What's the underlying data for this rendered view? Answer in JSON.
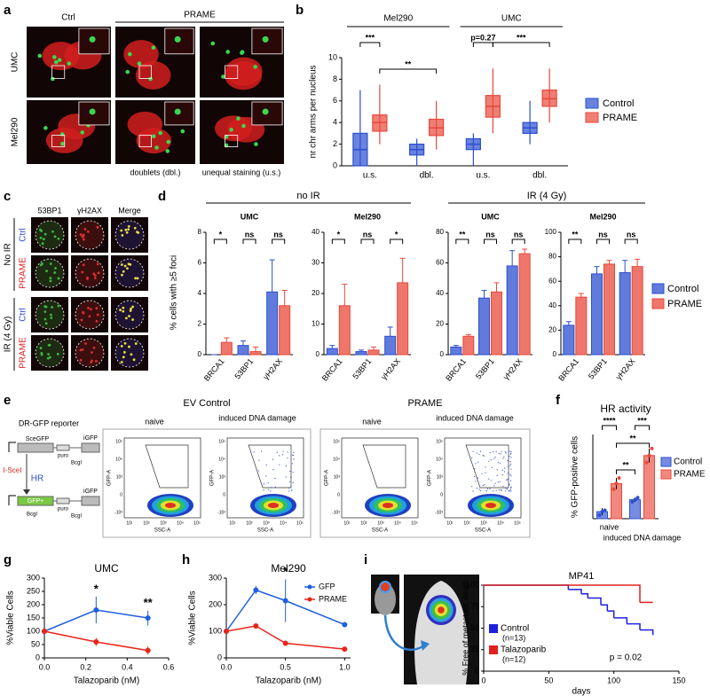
{
  "letters": [
    "a",
    "b",
    "c",
    "d",
    "e",
    "f",
    "g",
    "h",
    "i"
  ],
  "panel_a": {
    "columns": [
      "Ctrl",
      "PRAME"
    ],
    "rows": [
      "UMC",
      "Mel290"
    ],
    "captions": [
      "doublets (dbl.)",
      "unequal staining (u.s.)"
    ]
  },
  "panel_c": {
    "columns": [
      "53BP1",
      "γH2AX",
      "Merge"
    ],
    "groups": [
      "No IR",
      "IR (4 Gy)"
    ],
    "rows": [
      "Ctrl",
      "PRAME",
      "Ctrl",
      "PRAME"
    ]
  },
  "panel_e": {
    "reporter": {
      "title": "DR-GFP reporter",
      "top": [
        "SceGFP",
        "puro",
        "BcgI",
        "iGFP"
      ],
      "enzyme": "I-SceI",
      "repair": "HR",
      "bottom": [
        "GFP+",
        "BcgI",
        "puro",
        "BcgI",
        "iGFP"
      ]
    },
    "groups": [
      "EV Control",
      "PRAME"
    ],
    "conditions": [
      "naive",
      "induced DNA damage"
    ],
    "x_axis": "SSC-A",
    "y_axis": "GFP-A",
    "x_ticks": [
      "10¹",
      "10²",
      "10³",
      "10⁴",
      "10⁵"
    ],
    "y_ticks": [
      "-10³",
      "0",
      "10³",
      "10⁴",
      "10⁵"
    ]
  },
  "chart_data": [
    {
      "type": "box",
      "ylabel": "nr chr arms per nucleus",
      "groups": [
        "Mel290",
        "UMC"
      ],
      "categories": [
        "u.s.",
        "dbl.",
        "u.s.",
        "dbl."
      ],
      "ylim": [
        0,
        10
      ],
      "yticks": [
        0,
        2,
        4,
        6,
        8,
        10
      ],
      "annotations": [
        "***",
        "**",
        "p=0.27",
        "***"
      ],
      "series": [
        {
          "name": "Control",
          "color": "#2b4fd0",
          "boxes": [
            {
              "min": 0,
              "q1": 0,
              "median": 1.5,
              "q3": 3,
              "max": 7
            },
            {
              "min": 0,
              "q1": 1,
              "median": 1.5,
              "q3": 2,
              "max": 2.5
            },
            {
              "min": 0,
              "q1": 1.5,
              "median": 2,
              "q3": 2.5,
              "max": 3
            },
            {
              "min": 2,
              "q1": 3,
              "median": 3.5,
              "q3": 4,
              "max": 6
            }
          ]
        },
        {
          "name": "PRAME",
          "color": "#e8483a",
          "boxes": [
            {
              "min": 2,
              "q1": 3.2,
              "median": 4,
              "q3": 4.7,
              "max": 7.5
            },
            {
              "min": 1.5,
              "q1": 2.8,
              "median": 3.5,
              "q3": 4.3,
              "max": 6
            },
            {
              "min": 3,
              "q1": 4.5,
              "median": 5.5,
              "q3": 6.5,
              "max": 9
            },
            {
              "min": 4,
              "q1": 5.5,
              "median": 6.2,
              "q3": 7,
              "max": 9
            }
          ]
        }
      ]
    },
    {
      "type": "bar",
      "group_title": "no IR",
      "title": "UMC",
      "ylabel": "% cells with ≥5 foci",
      "categories": [
        "BRCA1",
        "53BP1",
        "γH2AX"
      ],
      "ylim": [
        0,
        8
      ],
      "yticks": [
        0,
        2,
        4,
        6,
        8
      ],
      "annotations": [
        "*",
        "ns",
        "ns"
      ],
      "series": [
        {
          "color": "#2b4fd0",
          "values": [
            0,
            0.6,
            4.1
          ],
          "errors": [
            0,
            0.3,
            2.1
          ]
        },
        {
          "color": "#e8483a",
          "values": [
            0.8,
            0.2,
            3.2
          ],
          "errors": [
            0.3,
            0.3,
            1
          ]
        }
      ]
    },
    {
      "type": "bar",
      "title": "Mel290",
      "categories": [
        "BRCA1",
        "53BP1",
        "γH2AX"
      ],
      "ylim": [
        0,
        40
      ],
      "yticks": [
        0,
        10,
        20,
        30,
        40
      ],
      "annotations": [
        "*",
        "ns",
        "*"
      ],
      "series": [
        {
          "color": "#2b4fd0",
          "values": [
            2,
            1,
            6
          ],
          "errors": [
            1,
            0.5,
            3
          ]
        },
        {
          "color": "#e8483a",
          "values": [
            16,
            1.5,
            23.5
          ],
          "errors": [
            7,
            1,
            8
          ]
        }
      ]
    },
    {
      "type": "bar",
      "group_title": "IR (4 Gy)",
      "title": "UMC",
      "categories": [
        "BRCA1",
        "53BP1",
        "γH2AX"
      ],
      "ylim": [
        0,
        80
      ],
      "yticks": [
        0,
        20,
        40,
        60,
        80
      ],
      "annotations": [
        "**",
        "ns",
        "ns"
      ],
      "series": [
        {
          "color": "#2b4fd0",
          "values": [
            5,
            37,
            58
          ],
          "errors": [
            1,
            5,
            10
          ]
        },
        {
          "color": "#e8483a",
          "values": [
            12,
            41,
            66
          ],
          "errors": [
            1,
            6,
            3
          ]
        }
      ]
    },
    {
      "type": "bar",
      "title": "Mel290",
      "categories": [
        "BRCA1",
        "53BP1",
        "γH2AX"
      ],
      "ylim": [
        0,
        100
      ],
      "yticks": [
        0,
        20,
        40,
        60,
        80,
        100
      ],
      "annotations": [
        "**",
        "ns",
        "ns"
      ],
      "series": [
        {
          "name": "Control",
          "color": "#2b4fd0",
          "values": [
            24,
            66,
            67
          ],
          "errors": [
            3,
            6,
            10
          ]
        },
        {
          "name": "PRAME",
          "color": "#e8483a",
          "values": [
            47,
            74,
            72
          ],
          "errors": [
            3,
            3,
            6
          ]
        }
      ]
    },
    {
      "type": "dotbar",
      "title": "HR activity",
      "ylabel": "% GFP-positive cells",
      "categories": [
        "naive",
        "induced DNA damage"
      ],
      "ylim": [
        0,
        0.12
      ],
      "annotations": [
        "****",
        "***",
        "**",
        "**"
      ],
      "series": [
        {
          "name": "Control",
          "color": "#2b4fd0",
          "values": [
            0.01,
            0.027
          ],
          "errors": [
            0.005,
            0.003
          ],
          "points": [
            [
              0.005,
              0.01,
              0.012
            ],
            [
              0.024,
              0.027,
              0.03
            ]
          ]
        },
        {
          "name": "PRAME",
          "color": "#e8483a",
          "values": [
            0.05,
            0.09
          ],
          "errors": [
            0.008,
            0.01
          ],
          "points": [
            [
              0.042,
              0.05,
              0.058
            ],
            [
              0.08,
              0.09,
              0.1
            ]
          ]
        }
      ]
    },
    {
      "type": "line",
      "title": "UMC",
      "xlabel": "Talazoparib (nM)",
      "ylabel": "%Viable Cells",
      "x": [
        0,
        0.25,
        0.5
      ],
      "xlim": [
        0,
        0.6
      ],
      "xticks": [
        {
          "value": 0,
          "label": "0.0"
        },
        0.2,
        0.4,
        0.6
      ],
      "ylim": [
        0,
        300
      ],
      "yticks": [
        0,
        50,
        100,
        150,
        200,
        250,
        300
      ],
      "annotations": [
        "*",
        "**"
      ],
      "series": [
        {
          "color": "#1f5fe0",
          "values": [
            100,
            180,
            150
          ],
          "errors": [
            0,
            50,
            28
          ]
        },
        {
          "color": "#e8251a",
          "values": [
            100,
            60,
            28
          ],
          "errors": [
            0,
            15,
            15
          ]
        }
      ]
    },
    {
      "type": "line",
      "title": "Mel290",
      "xlabel": "Talazoparib (nM)",
      "ylabel": "%Viable Cells",
      "x": [
        0,
        0.25,
        0.5,
        1.0
      ],
      "xlim": [
        0,
        1.05
      ],
      "xticks": [
        {
          "value": 0,
          "label": "0.0"
        },
        0.5,
        {
          "value": 1,
          "label": "1.0"
        }
      ],
      "ylim": [
        0,
        300
      ],
      "yticks": [
        0,
        100,
        200,
        300
      ],
      "annotations": [
        "*"
      ],
      "series": [
        {
          "name": "GFP",
          "color": "#1f5fe0",
          "values": [
            100,
            255,
            215,
            125
          ],
          "errors": [
            0,
            15,
            80,
            5
          ]
        },
        {
          "name": "PRAME",
          "color": "#e8251a",
          "values": [
            100,
            120,
            55,
            33
          ],
          "errors": [
            0,
            0,
            0,
            0
          ]
        }
      ]
    },
    {
      "type": "survival",
      "title": "MP41",
      "xlabel": "days",
      "ylabel": "% Free of metastatic death",
      "xlim": [
        0,
        150
      ],
      "xticks": [
        0,
        50,
        100,
        150
      ],
      "ylim": [
        0,
        100
      ],
      "yticks": [
        0,
        25,
        50,
        75,
        100
      ],
      "annotation": "p = 0.02",
      "series": [
        {
          "name": "Control",
          "n_label": "(n=13)",
          "color": "#1f1fe0",
          "x": [
            0,
            65,
            75,
            80,
            90,
            95,
            100,
            110,
            120,
            130
          ],
          "values": [
            100,
            95,
            90,
            85,
            77,
            70,
            62,
            55,
            48,
            42
          ]
        },
        {
          "name": "Talazoparib",
          "n_label": "(n=12)",
          "color": "#e0201f",
          "x": [
            0,
            120,
            130
          ],
          "values": [
            100,
            80,
            80
          ]
        }
      ]
    }
  ]
}
